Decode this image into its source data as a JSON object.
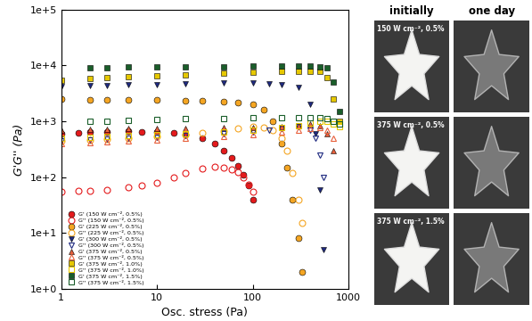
{
  "chart_data": {
    "type": "scatter",
    "x_label": "Osc. stress (Pa)",
    "y_label": "G'G'' (Pa)",
    "log": true,
    "legend": "lower left",
    "xlim": [
      1,
      1000
    ],
    "ylim": [
      1,
      100000
    ],
    "xticks": [
      1,
      10,
      100,
      1000
    ],
    "yticks": [
      {
        "value": 1,
        "label": "1e+0"
      },
      {
        "value": 10,
        "label": "1e+1"
      },
      {
        "value": 100,
        "label": "1e+2"
      },
      {
        "value": 1000,
        "label": "1e+3"
      },
      {
        "value": 10000,
        "label": "1e+4"
      },
      {
        "value": 100000,
        "label": "1e+5"
      }
    ],
    "series": [
      {
        "name": "G' (150 W cm⁻², 0.5%)",
        "color": "#e41a1c",
        "marker": "circle",
        "x": [
          1,
          1.5,
          2,
          3,
          5,
          7,
          10,
          15,
          20,
          30,
          40,
          50,
          60,
          70,
          80,
          90,
          100
        ],
        "values": [
          600,
          620,
          640,
          650,
          660,
          650,
          640,
          620,
          580,
          500,
          400,
          300,
          220,
          160,
          110,
          70,
          40
        ]
      },
      {
        "name": "G'' (150 W cm⁻², 0.5%)",
        "color": "#e41a1c",
        "marker": "open_circle",
        "x": [
          1,
          1.5,
          2,
          3,
          5,
          7,
          10,
          15,
          20,
          30,
          40,
          50,
          60,
          70,
          80,
          90,
          100
        ],
        "values": [
          55,
          56,
          58,
          60,
          65,
          70,
          80,
          100,
          120,
          145,
          155,
          150,
          140,
          125,
          100,
          75,
          55
        ]
      },
      {
        "name": "G' (225 W cm⁻², 0.5%)",
        "color": "#f5a623",
        "marker": "circle",
        "x": [
          1,
          2,
          3,
          5,
          10,
          20,
          30,
          50,
          70,
          100,
          130,
          160,
          200,
          230,
          260,
          300,
          330
        ],
        "values": [
          2500,
          2450,
          2450,
          2400,
          2400,
          2350,
          2300,
          2250,
          2200,
          2000,
          1600,
          1000,
          400,
          150,
          40,
          8,
          2
        ]
      },
      {
        "name": "G'' (225 W cm⁻², 0.5%)",
        "color": "#f5a623",
        "marker": "open_circle",
        "x": [
          1,
          2,
          3,
          5,
          10,
          20,
          30,
          50,
          70,
          100,
          130,
          160,
          200,
          230,
          260,
          300,
          330
        ],
        "values": [
          450,
          470,
          480,
          500,
          530,
          580,
          620,
          680,
          740,
          800,
          780,
          700,
          500,
          300,
          120,
          40,
          15
        ]
      },
      {
        "name": "G' (300 W cm⁻², 0.5%)",
        "color": "#1f2a80",
        "marker": "triangle_down",
        "x": [
          1,
          2,
          3,
          5,
          10,
          20,
          50,
          100,
          150,
          200,
          300,
          400,
          450,
          500,
          550
        ],
        "values": [
          4200,
          4300,
          4400,
          4500,
          4600,
          4700,
          4800,
          4800,
          4700,
          4500,
          4000,
          2000,
          600,
          60,
          5
        ]
      },
      {
        "name": "G'' (300 W cm⁻², 0.5%)",
        "color": "#1f2a80",
        "marker": "open_triangle_down",
        "x": [
          1,
          2,
          3,
          5,
          10,
          20,
          50,
          100,
          150,
          200,
          300,
          400,
          450,
          500,
          550
        ],
        "values": [
          450,
          470,
          480,
          500,
          520,
          550,
          600,
          650,
          700,
          750,
          800,
          700,
          500,
          250,
          100
        ]
      },
      {
        "name": "G' (375 W cm⁻², 0.5%)",
        "color": "#e8603c",
        "marker": "triangle_up",
        "x": [
          1,
          2,
          3,
          5,
          10,
          20,
          50,
          100,
          200,
          300,
          400,
          500,
          600,
          700
        ],
        "values": [
          700,
          720,
          730,
          740,
          750,
          760,
          770,
          780,
          800,
          850,
          900,
          850,
          600,
          300
        ]
      },
      {
        "name": "G'' (375 W cm⁻², 0.5%)",
        "color": "#e8603c",
        "marker": "open_triangle_up",
        "x": [
          1,
          2,
          3,
          5,
          10,
          20,
          50,
          100,
          200,
          300,
          400,
          500,
          600,
          700
        ],
        "values": [
          400,
          420,
          430,
          450,
          470,
          500,
          540,
          580,
          640,
          700,
          750,
          780,
          700,
          500
        ]
      },
      {
        "name": "G' (375 W cm⁻², 1.0%)",
        "color": "#e6c800",
        "marker": "square",
        "x": [
          1,
          2,
          3,
          5,
          10,
          20,
          50,
          100,
          200,
          300,
          400,
          500,
          600,
          700,
          800
        ],
        "values": [
          5500,
          5800,
          6000,
          6200,
          6500,
          6800,
          7200,
          7500,
          7800,
          8000,
          8000,
          7800,
          6000,
          2500,
          1000
        ]
      },
      {
        "name": "G'' (375 W cm⁻², 1.0%)",
        "color": "#e6c800",
        "marker": "open_square",
        "x": [
          1,
          2,
          3,
          5,
          10,
          20,
          50,
          100,
          200,
          300,
          400,
          500,
          600,
          700,
          800
        ],
        "values": [
          500,
          520,
          530,
          550,
          570,
          600,
          650,
          700,
          780,
          850,
          920,
          1000,
          1000,
          900,
          800
        ]
      },
      {
        "name": "G' (375 W cm⁻², 1.5%)",
        "color": "#1a5e2a",
        "marker": "square",
        "x": [
          2,
          3,
          5,
          10,
          20,
          50,
          100,
          200,
          300,
          400,
          500,
          600,
          700,
          800
        ],
        "values": [
          9000,
          9200,
          9300,
          9400,
          9500,
          9600,
          9700,
          9800,
          9800,
          9700,
          9500,
          9000,
          5000,
          1500
        ]
      },
      {
        "name": "G'' (375 W cm⁻², 1.5%)",
        "color": "#1a5e2a",
        "marker": "open_square",
        "x": [
          2,
          3,
          5,
          10,
          20,
          50,
          100,
          200,
          300,
          400,
          500,
          600,
          700,
          800
        ],
        "values": [
          1000,
          1020,
          1050,
          1080,
          1100,
          1120,
          1150,
          1150,
          1150,
          1150,
          1150,
          1100,
          1000,
          900
        ]
      }
    ]
  },
  "photos": {
    "headers": [
      "initially",
      "one day"
    ],
    "rows": [
      "150 W cm⁻², 0.5%",
      "375 W cm⁻², 0.5%",
      "375 W cm⁻², 1.5%"
    ]
  }
}
